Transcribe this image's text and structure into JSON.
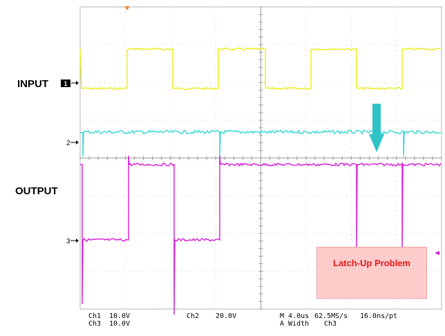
{
  "labels": {
    "input": "INPUT",
    "output": "OUTPUT"
  },
  "channel_markers": {
    "ch1": "1",
    "ch2": "2",
    "ch3": "3"
  },
  "callout": {
    "text": "Latch-Up Problem",
    "color": "#e01a1a",
    "background": "#ffcccc"
  },
  "readout": {
    "ch1_label": "Ch1",
    "ch1_scale": "10.0V",
    "ch3_label": "Ch3",
    "ch3_scale": "10.0V",
    "ch2_label": "Ch2",
    "ch2_scale": "20.0V",
    "timebase": "M 4.0us",
    "sample_rate": "62.5MS/s",
    "point_spacing": "16.0ns/pt",
    "measure": "A  Width",
    "measure_channel": "Ch3"
  },
  "colors": {
    "ch1": "#ecec14",
    "ch2": "#2fd6d6",
    "ch3": "#d61ad6",
    "arrow": "#2fc3c8",
    "trigger_marker": "#f08a3a"
  },
  "icons": {
    "down_arrow": "down-arrow-icon",
    "trigger": "trigger-marker-icon"
  }
}
